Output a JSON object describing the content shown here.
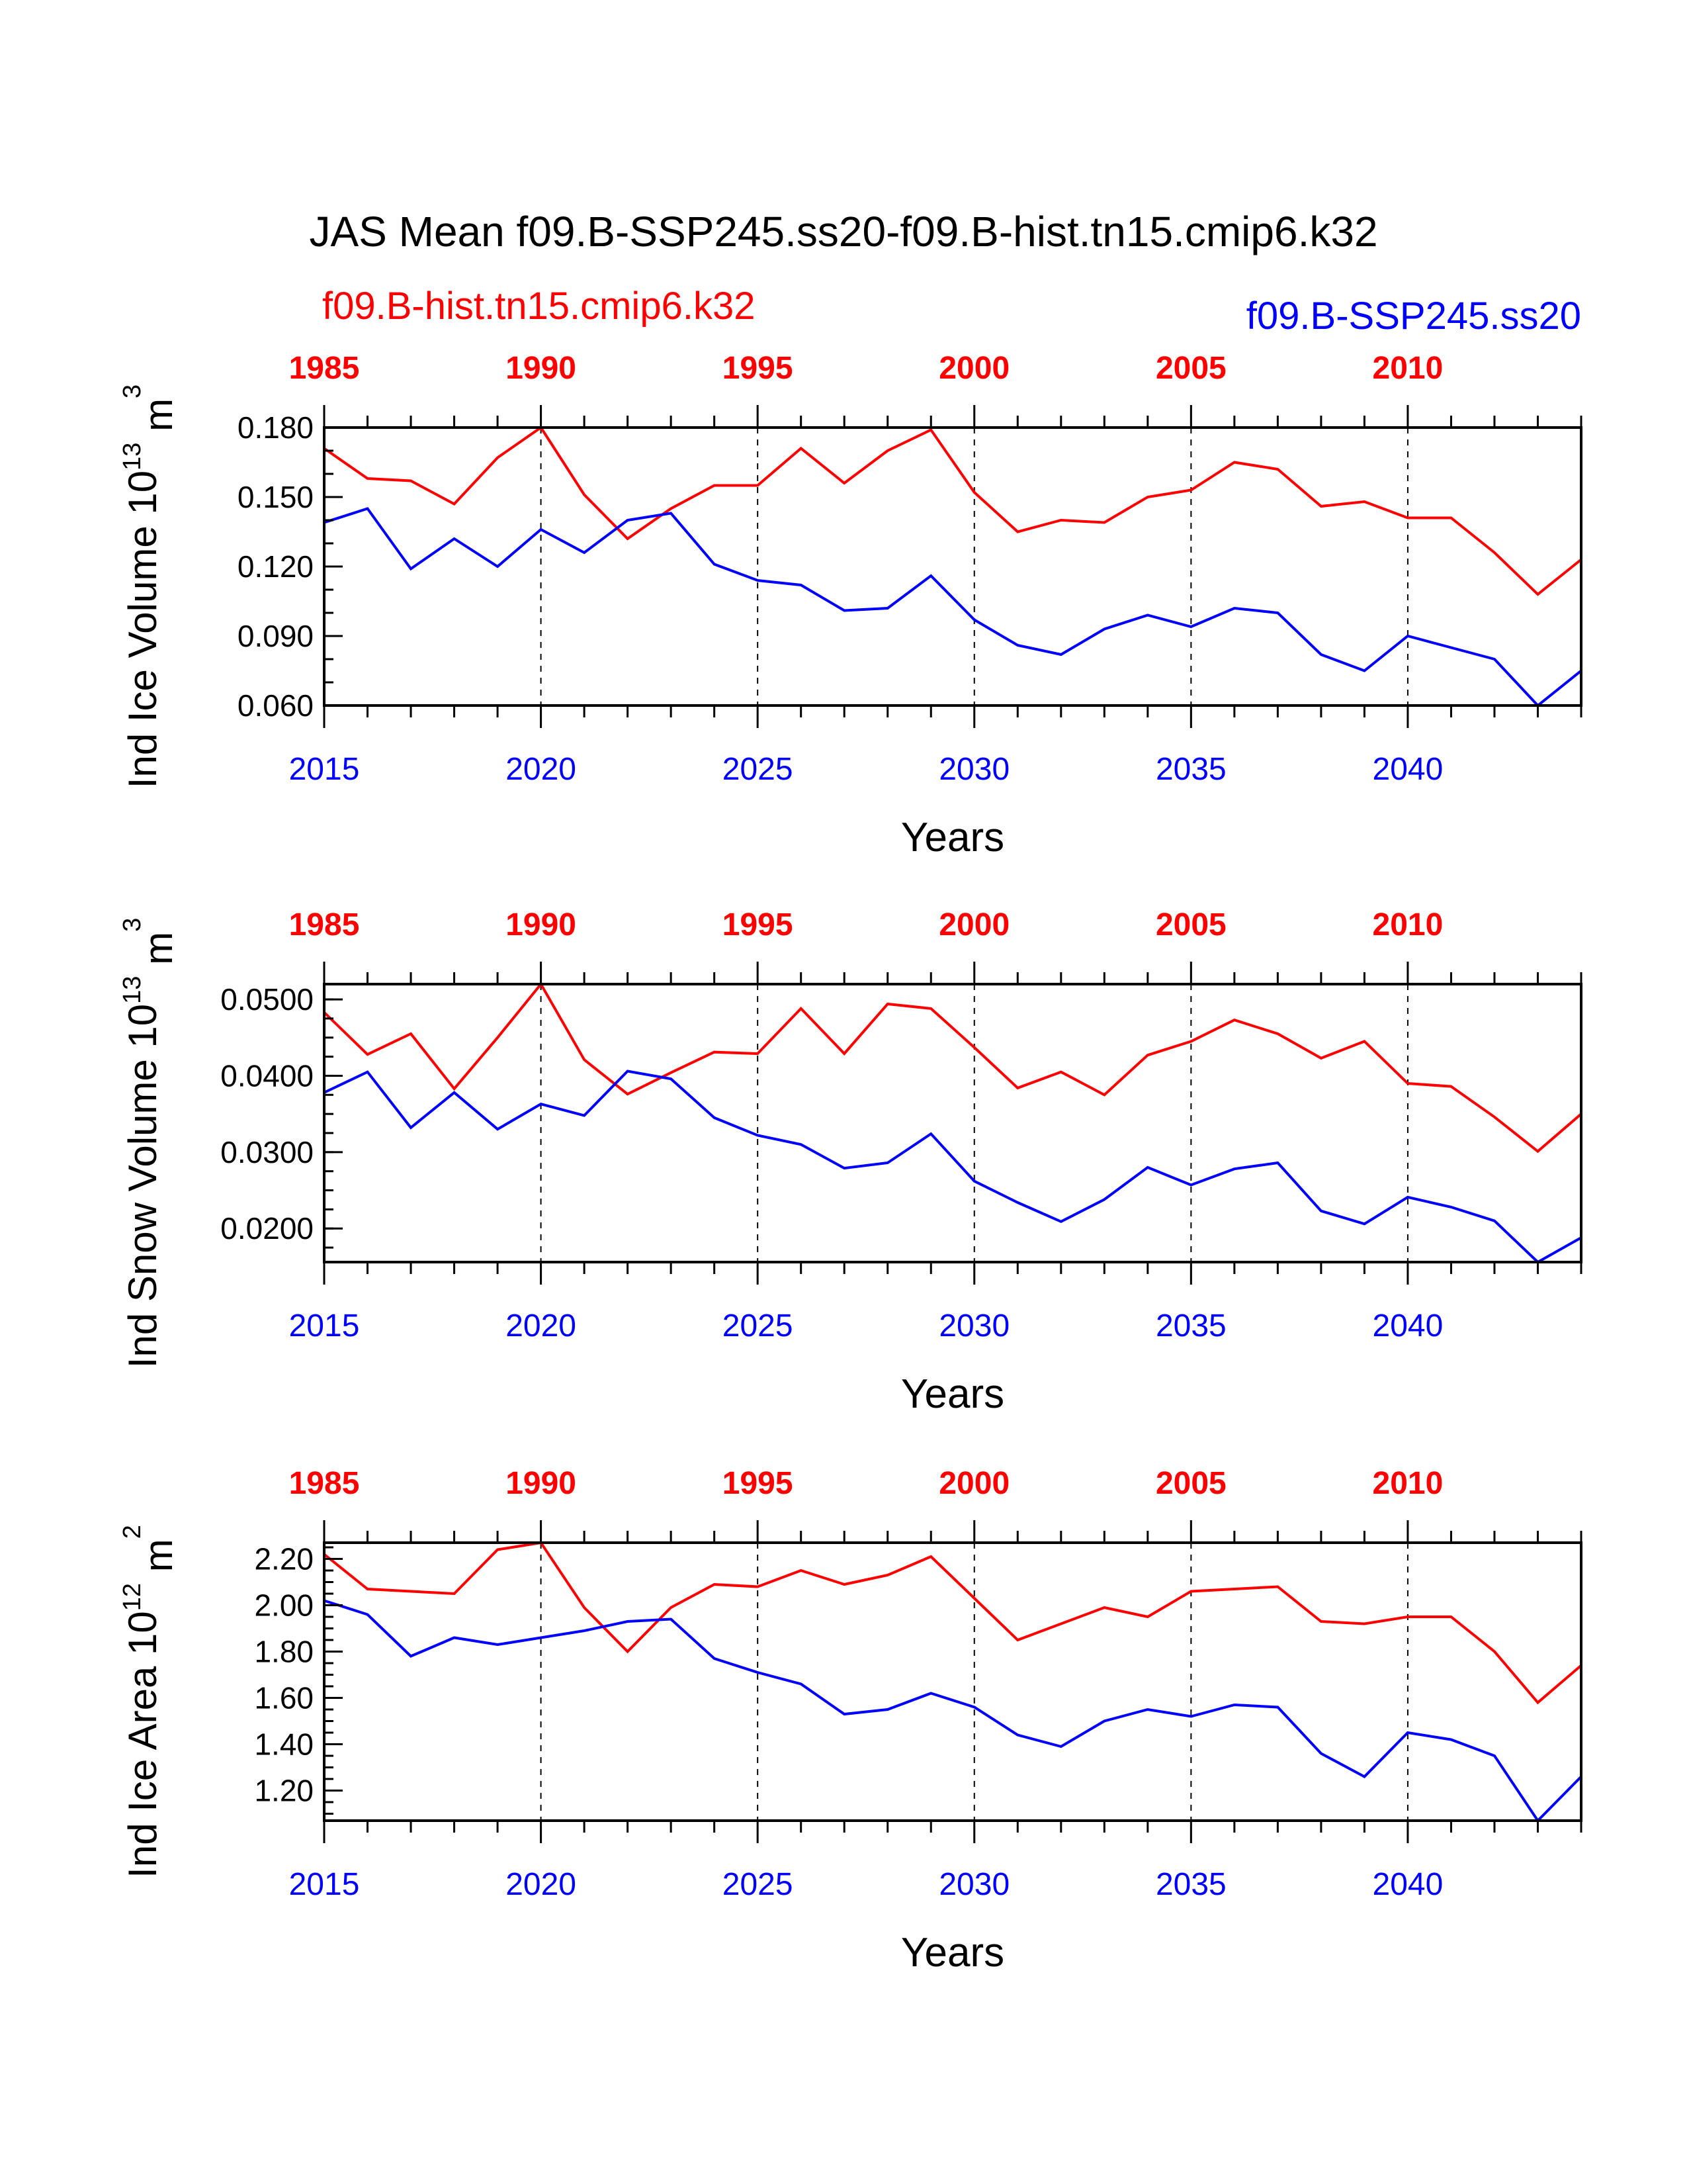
{
  "figure": {
    "title": "JAS Mean f09.B-SSP245.ss20-f09.B-hist.tn15.cmip6.k32",
    "label_hist": "f09.B-hist.tn15.cmip6.k32",
    "label_ssp": "f09.B-SSP245.ss20"
  },
  "colors": {
    "hist": "#ff0000",
    "ssp": "#0000ff",
    "axis": "#000000"
  },
  "chart_data": [
    {
      "type": "line",
      "ylabel": "Ind Ice Volume 10",
      "ylabel_exp": "13",
      "ylabel_unit": " m",
      "ylabel_unit_exp": "3",
      "xlabel": "Years",
      "ylim": [
        0.06,
        0.18
      ],
      "xlim": [
        2015,
        2044
      ],
      "yticks": [
        0.06,
        0.09,
        0.12,
        0.15,
        0.18
      ],
      "ytick_labels": [
        "0.060",
        "0.090",
        "0.120",
        "0.150",
        "0.180"
      ],
      "ytick_minor": 0.01,
      "bottom_ticks": [
        2015,
        2020,
        2025,
        2030,
        2035,
        2040
      ],
      "top_ticks": [
        1985,
        1990,
        1995,
        2000,
        2005,
        2010
      ],
      "dashed_gridlines_at": [
        2020,
        2025,
        2030,
        2035,
        2040
      ],
      "series": [
        {
          "key": "hist",
          "x_offset": 30,
          "values": [
            0.171,
            0.158,
            0.157,
            0.147,
            0.167,
            0.18,
            0.151,
            0.132,
            0.145,
            0.155,
            0.155,
            0.171,
            0.156,
            0.17,
            0.179,
            0.152,
            0.135,
            0.14,
            0.139,
            0.15,
            0.153,
            0.165,
            0.162,
            0.146,
            0.148,
            0.141,
            0.141,
            0.126,
            0.108,
            0.123
          ]
        },
        {
          "key": "ssp",
          "x_offset": 0,
          "values": [
            0.139,
            0.145,
            0.119,
            0.132,
            0.12,
            0.136,
            0.126,
            0.14,
            0.143,
            0.121,
            0.114,
            0.112,
            0.101,
            0.102,
            0.116,
            0.097,
            0.086,
            0.082,
            0.093,
            0.099,
            0.094,
            0.102,
            0.1,
            0.082,
            0.075,
            0.09,
            0.085,
            0.08,
            0.06,
            0.075
          ]
        }
      ]
    },
    {
      "type": "line",
      "ylabel": "Ind Snow Volume 10",
      "ylabel_exp": "13",
      "ylabel_unit": " m",
      "ylabel_unit_exp": "3",
      "xlabel": "Years",
      "ylim": [
        0.0156,
        0.052
      ],
      "xlim": [
        2015,
        2044
      ],
      "yticks": [
        0.02,
        0.03,
        0.04,
        0.05
      ],
      "ytick_labels": [
        "0.0200",
        "0.0300",
        "0.0400",
        "0.0500"
      ],
      "ytick_minor": 0.0025,
      "bottom_ticks": [
        2015,
        2020,
        2025,
        2030,
        2035,
        2040
      ],
      "top_ticks": [
        1985,
        1990,
        1995,
        2000,
        2005,
        2010
      ],
      "dashed_gridlines_at": [
        2020,
        2025,
        2030,
        2035,
        2040
      ],
      "series": [
        {
          "key": "hist",
          "x_offset": 30,
          "values": [
            0.0483,
            0.0428,
            0.0455,
            0.0383,
            0.045,
            0.052,
            0.0421,
            0.0376,
            0.0404,
            0.0431,
            0.0429,
            0.0488,
            0.0429,
            0.0494,
            0.0488,
            0.0437,
            0.0384,
            0.0405,
            0.0375,
            0.0427,
            0.0445,
            0.0473,
            0.0455,
            0.0423,
            0.0445,
            0.039,
            0.0386,
            0.0346,
            0.0301,
            0.035
          ]
        },
        {
          "key": "ssp",
          "x_offset": 0,
          "values": [
            0.0378,
            0.0405,
            0.0332,
            0.0378,
            0.033,
            0.0363,
            0.0348,
            0.0406,
            0.0396,
            0.0345,
            0.0322,
            0.031,
            0.0279,
            0.0286,
            0.0324,
            0.0262,
            0.0234,
            0.0209,
            0.0238,
            0.028,
            0.0257,
            0.0278,
            0.0286,
            0.0223,
            0.0206,
            0.0241,
            0.0228,
            0.021,
            0.0156,
            0.0188
          ]
        }
      ]
    },
    {
      "type": "line",
      "ylabel": "Ind Ice Area 10",
      "ylabel_exp": "12",
      "ylabel_unit": " m",
      "ylabel_unit_exp": "2",
      "xlabel": "Years",
      "ylim": [
        1.07,
        2.27
      ],
      "xlim": [
        2015,
        2044
      ],
      "yticks": [
        1.2,
        1.4,
        1.6,
        1.8,
        2.0,
        2.2
      ],
      "ytick_labels": [
        "1.20",
        "1.40",
        "1.60",
        "1.80",
        "2.00",
        "2.20"
      ],
      "ytick_minor": 0.05,
      "bottom_ticks": [
        2015,
        2020,
        2025,
        2030,
        2035,
        2040
      ],
      "top_ticks": [
        1985,
        1990,
        1995,
        2000,
        2005,
        2010
      ],
      "dashed_gridlines_at": [
        2020,
        2025,
        2030,
        2035,
        2040
      ],
      "series": [
        {
          "key": "hist",
          "x_offset": 30,
          "values": [
            2.22,
            2.07,
            2.06,
            2.05,
            2.24,
            2.27,
            1.99,
            1.8,
            1.99,
            2.09,
            2.08,
            2.15,
            2.09,
            2.13,
            2.21,
            2.03,
            1.85,
            1.92,
            1.99,
            1.95,
            2.06,
            2.07,
            2.08,
            1.93,
            1.92,
            1.95,
            1.95,
            1.8,
            1.58,
            1.74
          ]
        },
        {
          "key": "ssp",
          "x_offset": 0,
          "values": [
            2.02,
            1.96,
            1.78,
            1.86,
            1.83,
            1.86,
            1.89,
            1.93,
            1.94,
            1.77,
            1.71,
            1.66,
            1.53,
            1.55,
            1.62,
            1.56,
            1.44,
            1.39,
            1.5,
            1.55,
            1.52,
            1.57,
            1.56,
            1.36,
            1.26,
            1.45,
            1.42,
            1.35,
            1.07,
            1.26
          ]
        }
      ]
    }
  ]
}
